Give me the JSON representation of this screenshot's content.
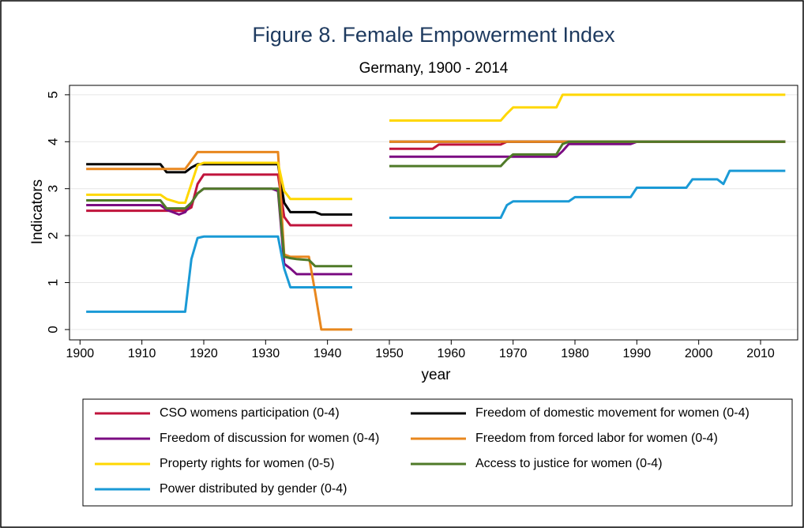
{
  "chart_data": {
    "type": "line",
    "title": "Figure 8. Female Empowerment Index",
    "subtitle": "Germany, 1900 - 2014",
    "xlabel": "year",
    "ylabel": "Indicators",
    "x": [
      1901,
      1913,
      1914,
      1916,
      1917,
      1918,
      1919,
      1920,
      1931,
      1932,
      1933,
      1934,
      1935,
      1937,
      1938,
      1939,
      1944,
      1947,
      1950,
      1957,
      1958,
      1968,
      1969,
      1970,
      1977,
      1978,
      1979,
      1980,
      1989,
      1990,
      1998,
      1999,
      2003,
      2004,
      2005,
      2014
    ],
    "series": [
      {
        "name": "CSO womens participation (0-4)",
        "color": "#c0143c",
        "values": [
          2.53,
          2.53,
          2.53,
          2.53,
          2.53,
          2.6,
          3.1,
          3.3,
          3.3,
          3.3,
          2.4,
          2.22,
          2.22,
          2.22,
          2.22,
          2.22,
          2.22,
          null,
          3.85,
          3.85,
          3.94,
          3.94,
          4,
          4,
          4,
          4,
          4,
          4,
          4,
          4,
          4,
          4,
          4,
          4,
          4,
          4
        ]
      },
      {
        "name": "Freedom of domestic movement for women (0-4)",
        "color": "#000000",
        "values": [
          3.52,
          3.52,
          3.35,
          3.35,
          3.35,
          3.45,
          3.52,
          3.52,
          3.52,
          3.52,
          2.7,
          2.5,
          2.5,
          2.5,
          2.5,
          2.45,
          2.45,
          null,
          4,
          4,
          4,
          4,
          4,
          4,
          4,
          4,
          4,
          4,
          4,
          4,
          4,
          4,
          4,
          4,
          4,
          4
        ]
      },
      {
        "name": "Freedom of discussion for women (0-4)",
        "color": "#7b0c82",
        "values": [
          2.65,
          2.65,
          2.55,
          2.45,
          2.5,
          2.7,
          2.9,
          3,
          3,
          2.95,
          1.4,
          1.3,
          1.18,
          1.18,
          1.18,
          1.18,
          1.18,
          null,
          3.68,
          3.68,
          3.68,
          3.68,
          3.68,
          3.68,
          3.68,
          3.8,
          3.95,
          3.95,
          3.95,
          4,
          4,
          4,
          4,
          4,
          4,
          4
        ]
      },
      {
        "name": "Freedom from forced labor for women (0-4)",
        "color": "#e8871e",
        "values": [
          3.42,
          3.42,
          3.42,
          3.42,
          3.42,
          3.6,
          3.78,
          3.78,
          3.78,
          3.78,
          1.6,
          1.55,
          1.55,
          1.55,
          0.8,
          0,
          0,
          null,
          4,
          4,
          4,
          4,
          4,
          4,
          4,
          4,
          4,
          4,
          4,
          4,
          4,
          4,
          4,
          4,
          4,
          4
        ]
      },
      {
        "name": "Property rights for women (0-5)",
        "color": "#ffd700",
        "values": [
          2.87,
          2.87,
          2.78,
          2.7,
          2.7,
          3.1,
          3.5,
          3.55,
          3.55,
          3.55,
          2.95,
          2.78,
          2.78,
          2.78,
          2.78,
          2.78,
          2.78,
          null,
          4.45,
          4.45,
          4.45,
          4.45,
          4.6,
          4.73,
          4.73,
          5,
          5,
          5,
          5,
          5,
          5,
          5,
          5,
          5,
          5,
          5
        ]
      },
      {
        "name": "Access to justice for women (0-4)",
        "color": "#4f7a28",
        "values": [
          2.75,
          2.75,
          2.58,
          2.58,
          2.58,
          2.7,
          2.9,
          3,
          3,
          3,
          1.55,
          1.52,
          1.5,
          1.48,
          1.35,
          1.35,
          1.35,
          null,
          3.48,
          3.48,
          3.48,
          3.48,
          3.62,
          3.73,
          3.73,
          3.95,
          4,
          4,
          4,
          4,
          4,
          4,
          4,
          4,
          4,
          4
        ]
      },
      {
        "name": "Power distributed by gender (0-4)",
        "color": "#1a9ad6",
        "values": [
          0.38,
          0.38,
          0.38,
          0.38,
          0.38,
          1.5,
          1.95,
          1.98,
          1.98,
          1.98,
          1.3,
          0.9,
          0.9,
          0.9,
          0.9,
          0.9,
          0.9,
          null,
          2.38,
          2.38,
          2.38,
          2.38,
          2.65,
          2.73,
          2.73,
          2.73,
          2.73,
          2.82,
          2.82,
          3.02,
          3.02,
          3.2,
          3.2,
          3.1,
          3.38,
          3.38
        ]
      }
    ],
    "xlim": [
      1898.3,
      2016
    ],
    "ylim": [
      -0.22,
      5.2
    ],
    "xticks": [
      1900,
      1910,
      1920,
      1930,
      1940,
      1950,
      1960,
      1970,
      1980,
      1990,
      2000,
      2010
    ],
    "yticks": [
      0,
      1,
      2,
      3,
      4,
      5
    ],
    "grid": true
  }
}
